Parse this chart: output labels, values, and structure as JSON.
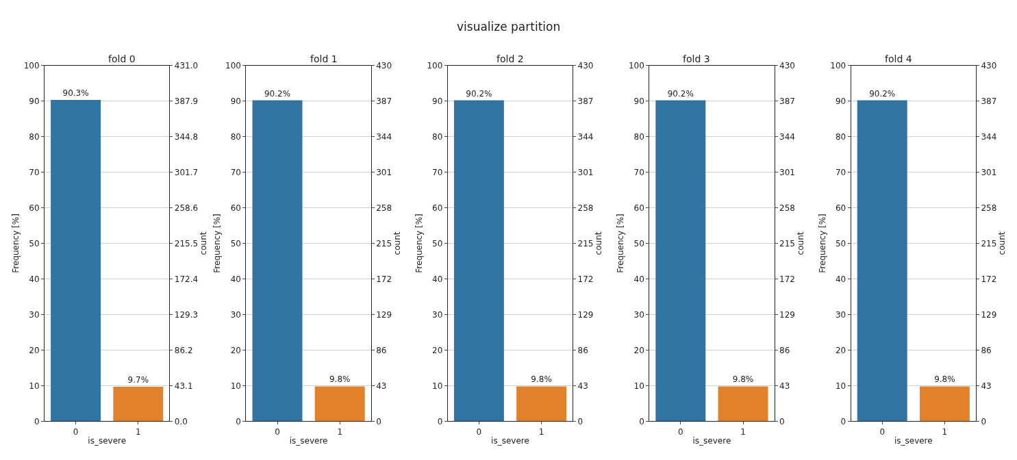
{
  "chart_data": [
    {
      "type": "bar",
      "title": "fold 0",
      "annotations": [
        "visualize partition"
      ],
      "xlabel": "is_severe",
      "ylabel": "Frequency [%]",
      "y2label": "count",
      "categories": [
        "0",
        "1"
      ],
      "values": [
        90.3,
        9.7
      ],
      "value_labels": [
        "90.3%",
        "9.7%"
      ],
      "colors": [
        "#3274a1",
        "#e1812c"
      ],
      "ylim": [
        0,
        100
      ],
      "yticks": [
        0,
        10,
        20,
        30,
        40,
        50,
        60,
        70,
        80,
        90,
        100
      ],
      "y2lim": [
        0,
        431.0
      ],
      "y2ticks": [
        {
          "value": 0,
          "label": "0.0"
        },
        43.1,
        86.2,
        129.3,
        172.4,
        215.5,
        258.6,
        301.7,
        344.8,
        387.9,
        {
          "value": 431,
          "label": "431.0"
        }
      ],
      "grid": "y"
    },
    {
      "type": "bar",
      "title": "fold 1",
      "xlabel": "is_severe",
      "ylabel": "Frequency [%]",
      "y2label": "count",
      "categories": [
        "0",
        "1"
      ],
      "values": [
        90.2,
        9.8
      ],
      "value_labels": [
        "90.2%",
        "9.8%"
      ],
      "colors": [
        "#3274a1",
        "#e1812c"
      ],
      "ylim": [
        0,
        100
      ],
      "yticks": [
        0,
        10,
        20,
        30,
        40,
        50,
        60,
        70,
        80,
        90,
        100
      ],
      "y2lim": [
        0,
        430
      ],
      "y2ticks": [
        0,
        43,
        86,
        129,
        172,
        215,
        258,
        301,
        344,
        387,
        430
      ],
      "grid": "y"
    },
    {
      "type": "bar",
      "title": "fold 2",
      "xlabel": "is_severe",
      "ylabel": "Frequency [%]",
      "y2label": "count",
      "categories": [
        "0",
        "1"
      ],
      "values": [
        90.2,
        9.8
      ],
      "value_labels": [
        "90.2%",
        "9.8%"
      ],
      "colors": [
        "#3274a1",
        "#e1812c"
      ],
      "ylim": [
        0,
        100
      ],
      "yticks": [
        0,
        10,
        20,
        30,
        40,
        50,
        60,
        70,
        80,
        90,
        100
      ],
      "y2lim": [
        0,
        430
      ],
      "y2ticks": [
        0,
        43,
        86,
        129,
        172,
        215,
        258,
        301,
        344,
        387,
        430
      ],
      "grid": "y"
    },
    {
      "type": "bar",
      "title": "fold 3",
      "xlabel": "is_severe",
      "ylabel": "Frequency [%]",
      "y2label": "count",
      "categories": [
        "0",
        "1"
      ],
      "values": [
        90.2,
        9.8
      ],
      "value_labels": [
        "90.2%",
        "9.8%"
      ],
      "colors": [
        "#3274a1",
        "#e1812c"
      ],
      "ylim": [
        0,
        100
      ],
      "yticks": [
        0,
        10,
        20,
        30,
        40,
        50,
        60,
        70,
        80,
        90,
        100
      ],
      "y2lim": [
        0,
        430
      ],
      "y2ticks": [
        0,
        43,
        86,
        129,
        172,
        215,
        258,
        301,
        344,
        387,
        430
      ],
      "grid": "y"
    },
    {
      "type": "bar",
      "title": "fold 4",
      "xlabel": "is_severe",
      "ylabel": "Frequency [%]",
      "y2label": "count",
      "categories": [
        "0",
        "1"
      ],
      "values": [
        90.2,
        9.8
      ],
      "value_labels": [
        "90.2%",
        "9.8%"
      ],
      "colors": [
        "#3274a1",
        "#e1812c"
      ],
      "ylim": [
        0,
        100
      ],
      "yticks": [
        0,
        10,
        20,
        30,
        40,
        50,
        60,
        70,
        80,
        90,
        100
      ],
      "y2lim": [
        0,
        430
      ],
      "y2ticks": [
        0,
        43,
        86,
        129,
        172,
        215,
        258,
        301,
        344,
        387,
        430
      ],
      "grid": "y"
    }
  ]
}
